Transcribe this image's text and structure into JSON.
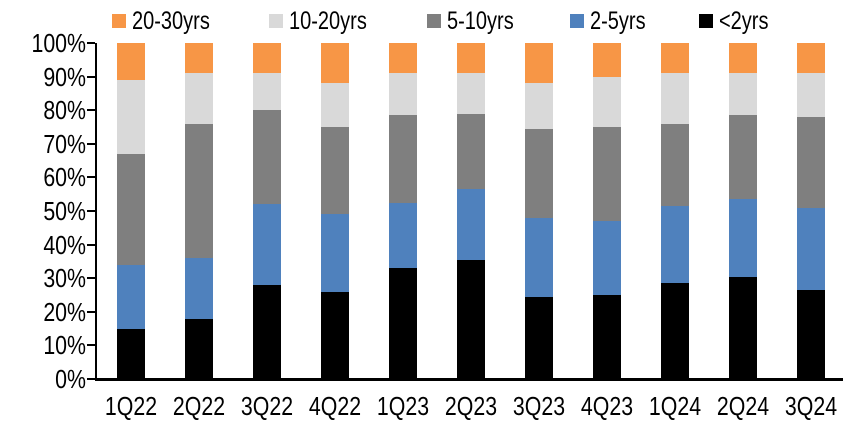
{
  "chart_data": {
    "type": "bar",
    "stacked": true,
    "percent": true,
    "categories": [
      "1Q22",
      "2Q22",
      "3Q22",
      "4Q22",
      "1Q23",
      "2Q23",
      "3Q23",
      "4Q23",
      "1Q24",
      "2Q24",
      "3Q24"
    ],
    "series": [
      {
        "name": "<2yrs",
        "color": "#000000",
        "values": [
          15,
          18,
          28,
          26,
          33,
          35.5,
          24.5,
          25,
          28.5,
          30.5,
          26.5
        ]
      },
      {
        "name": "2-5yrs",
        "color": "#4F81BD",
        "values": [
          19,
          18,
          24,
          23,
          19.5,
          21,
          23.5,
          22,
          23,
          23,
          24.5
        ]
      },
      {
        "name": "5-10yrs",
        "color": "#7F7F7F",
        "values": [
          33,
          40,
          28,
          26,
          26,
          22.5,
          26.5,
          28,
          24.5,
          25,
          27
        ]
      },
      {
        "name": "10-20yrs",
        "color": "#D9D9D9",
        "values": [
          22,
          15,
          11,
          13,
          12.5,
          12,
          13.5,
          15,
          15,
          12.5,
          13
        ]
      },
      {
        "name": "20-30yrs",
        "color": "#F79646",
        "values": [
          11,
          9,
          9,
          12,
          9,
          9,
          12,
          10,
          9,
          9,
          9
        ]
      }
    ],
    "legend_order": [
      "20-30yrs",
      "10-20yrs",
      "5-10yrs",
      "2-5yrs",
      "<2yrs"
    ],
    "legend_position": "top",
    "yticks": [
      "0%",
      "10%",
      "20%",
      "30%",
      "40%",
      "50%",
      "60%",
      "70%",
      "80%",
      "90%",
      "100%"
    ],
    "ylim": [
      0,
      100
    ],
    "ytick_step": 10,
    "grid": false,
    "axis_color": "#000000",
    "background_color": "#FFFFFF"
  }
}
